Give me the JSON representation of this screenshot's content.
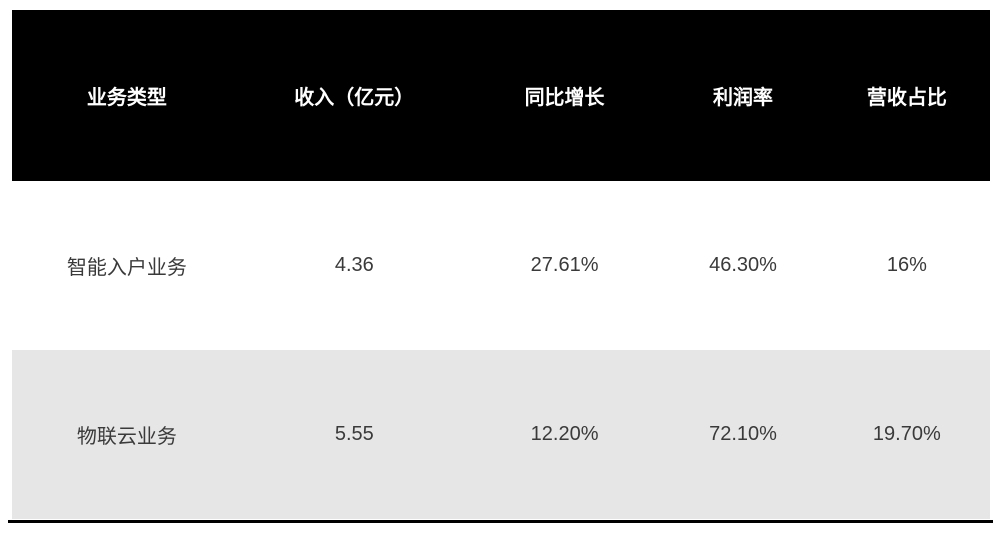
{
  "chart_data": {
    "type": "table",
    "title": "",
    "columns": [
      "业务类型",
      "收入（亿元）",
      "同比增长",
      "利润率",
      "营收占比"
    ],
    "rows": [
      [
        "智能入户业务",
        "4.36",
        "27.61%",
        "46.30%",
        "16%"
      ],
      [
        "物联云业务",
        "5.55",
        "12.20%",
        "72.10%",
        "19.70%"
      ]
    ],
    "numeric": {
      "revenue_yi_yuan": [
        4.36,
        5.55
      ],
      "yoy_growth_pct": [
        27.61,
        12.2
      ],
      "profit_margin_pct": [
        46.3,
        72.1
      ],
      "revenue_share_pct": [
        16,
        19.7
      ]
    },
    "layout": {
      "header_bg": "#000000",
      "header_text_color": "#ffffff",
      "alt_row_bg": "#e7e6e6",
      "body_text_color": "#3a3a3a",
      "bottom_border_color": "#000000"
    }
  }
}
